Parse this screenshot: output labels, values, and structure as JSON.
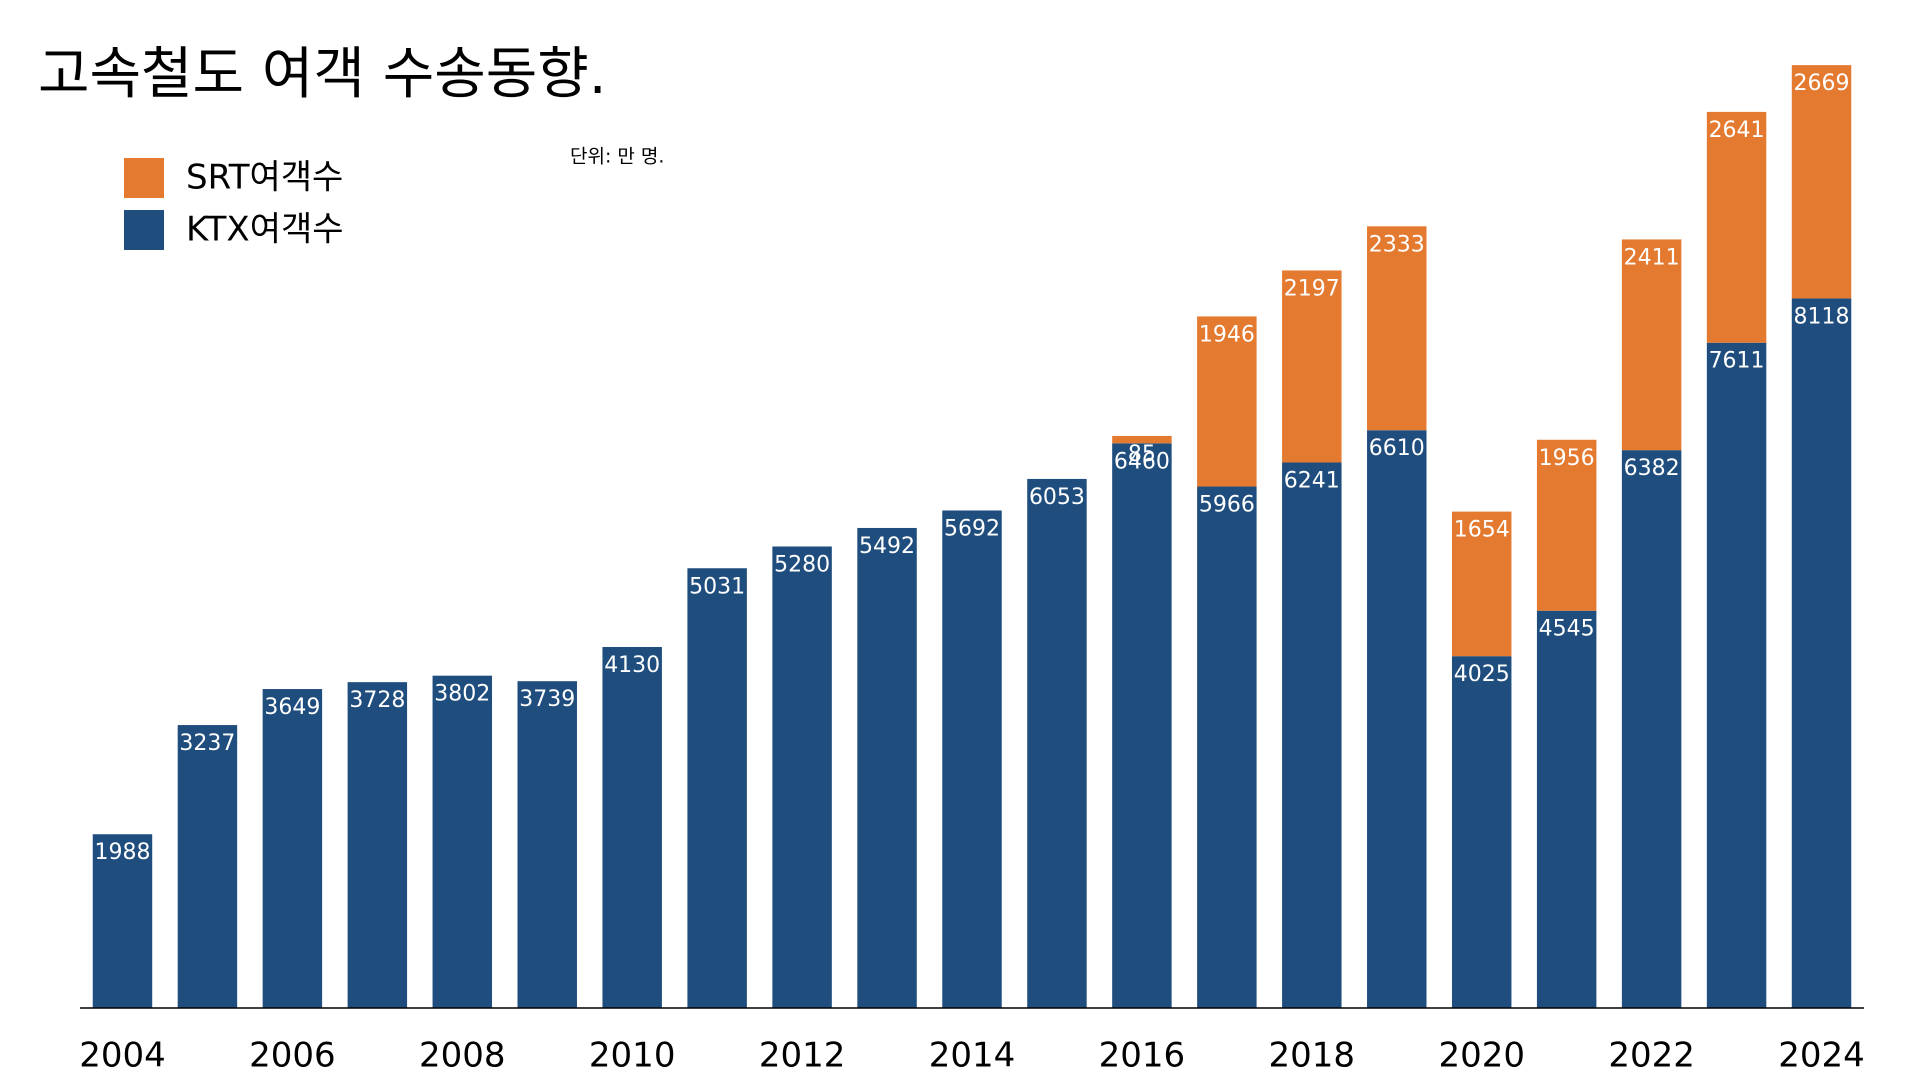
{
  "chart_data": {
    "type": "stacked-bar",
    "title": "고속철도 여객 수송동향.",
    "unit_note": "단위: 만 명.",
    "x": [
      2004,
      2005,
      2006,
      2007,
      2008,
      2009,
      2010,
      2011,
      2012,
      2013,
      2014,
      2015,
      2016,
      2017,
      2018,
      2019,
      2020,
      2021,
      2022,
      2023,
      2024
    ],
    "xlim": [
      2003.5,
      2024.5
    ],
    "xticks": [
      2004,
      2006,
      2008,
      2010,
      2012,
      2014,
      2016,
      2018,
      2020,
      2022,
      2024
    ],
    "ylim": [
      0,
      10800
    ],
    "series": [
      {
        "name": "KTX여객수",
        "color": "#1f4e7e",
        "values": [
          1988,
          3237,
          3649,
          3728,
          3802,
          3739,
          4130,
          5031,
          5280,
          5492,
          5692,
          6053,
          6460,
          5966,
          6241,
          6610,
          4025,
          4545,
          6382,
          7611,
          8118
        ]
      },
      {
        "name": "SRT여객수",
        "color": "#e47a30",
        "values": [
          null,
          null,
          null,
          null,
          null,
          null,
          null,
          null,
          null,
          null,
          null,
          null,
          85,
          1946,
          2197,
          2333,
          1654,
          1956,
          2411,
          2641,
          2669
        ]
      }
    ],
    "legend": "upper left",
    "grid": false
  }
}
